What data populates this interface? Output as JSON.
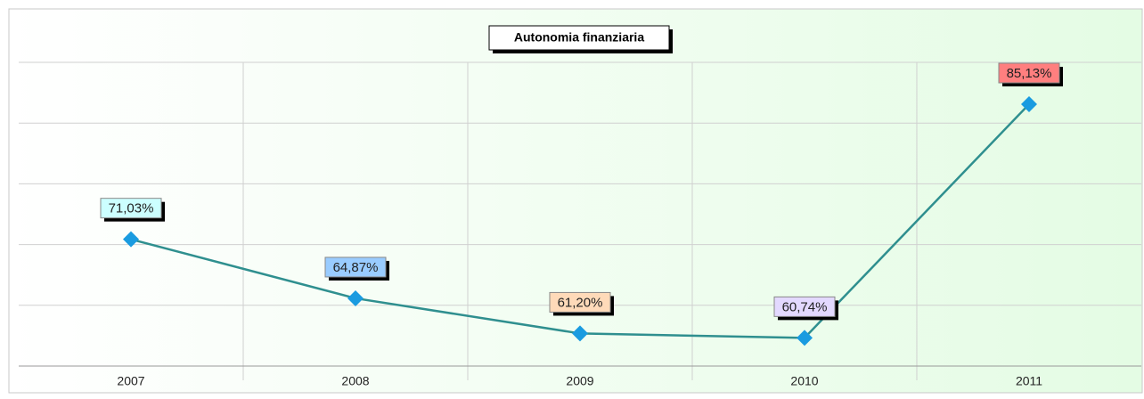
{
  "chart_data": {
    "type": "line",
    "title": "Autonomia finanziaria",
    "categories": [
      "2007",
      "2008",
      "2009",
      "2010",
      "2011"
    ],
    "values": [
      71.03,
      64.87,
      61.2,
      60.74,
      85.13
    ],
    "value_labels": [
      "71,03%",
      "64,87%",
      "61,20%",
      "60,74%",
      "85,13%"
    ],
    "label_colors": [
      "#ccffff",
      "#99ccff",
      "#ffdab9",
      "#e3d9ff",
      "#ff7f7f"
    ],
    "color": "#2f8f8f",
    "marker_color": "#1a9be0",
    "ylim": [
      57.8,
      89.5
    ],
    "yticks": [
      57.8,
      64.14,
      70.48,
      76.82,
      83.16,
      89.5
    ],
    "grid": true
  }
}
